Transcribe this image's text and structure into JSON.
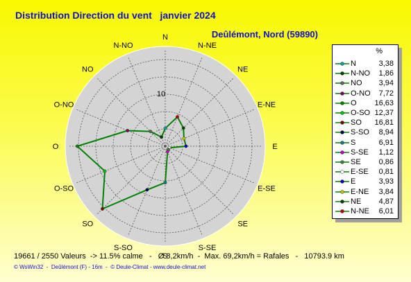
{
  "header": {
    "title": "Distribution Direction du vent   janvier 2024",
    "subtitle": "Deûlémont, Nord (59890)"
  },
  "chart_data": {
    "type": "radar",
    "directions": [
      "N",
      "N-NE",
      "NE",
      "E-NE",
      "E",
      "E-SE",
      "SE",
      "S-SE",
      "S",
      "S-SO",
      "SO",
      "O-SO",
      "O",
      "O-NO",
      "NO",
      "N-NO"
    ],
    "values": [
      3.38,
      6.01,
      4.87,
      3.84,
      3.93,
      0.81,
      0.86,
      1.12,
      6.91,
      8.94,
      16.81,
      12.37,
      16.63,
      7.72,
      3.94,
      1.86
    ],
    "ring_label": "10",
    "rmax": 16.81,
    "grid": true,
    "legend_position": "right",
    "line_color": "#008000"
  },
  "legend": {
    "header": "%",
    "items": [
      {
        "name": "N",
        "value": "3,38",
        "color": "#00a0a0"
      },
      {
        "name": "N-NO",
        "value": "1,86",
        "color": "#004000"
      },
      {
        "name": "NO",
        "value": "3,94",
        "color": "#606060"
      },
      {
        "name": "O-NO",
        "value": "7,72",
        "color": "#800060"
      },
      {
        "name": "O",
        "value": "16,63",
        "color": "#008000"
      },
      {
        "name": "O-SO",
        "value": "12,37",
        "color": "#00c000"
      },
      {
        "name": "SO",
        "value": "16,81",
        "color": "#800000"
      },
      {
        "name": "S-SO",
        "value": "8,94",
        "color": "#000040"
      },
      {
        "name": "S",
        "value": "6,91",
        "color": "#008080"
      },
      {
        "name": "S-SE",
        "value": "1,12",
        "color": "#c000c0"
      },
      {
        "name": "SE",
        "value": "0,86",
        "color": "#408040"
      },
      {
        "name": "E-SE",
        "value": "0,81",
        "color": "#ffffff"
      },
      {
        "name": "E",
        "value": "3,93",
        "color": "#0000c0"
      },
      {
        "name": "E-NE",
        "value": "3,84",
        "color": "#c0c000"
      },
      {
        "name": "NE",
        "value": "4,87",
        "color": "#004000"
      },
      {
        "name": "N-NE",
        "value": "6,01",
        "color": "#c00000"
      }
    ]
  },
  "footer": {
    "stats": "19661 / 2550 Valeurs  -> 11.5% calme   -   Ø 8,2km/h  -  Max. 69,2km/h = Rafales   -   10793.9 km",
    "credits": "© WsWin32  -  Deûlémont (F) - 16m  -  © Deule-Climat - www.deule-climat.net"
  }
}
